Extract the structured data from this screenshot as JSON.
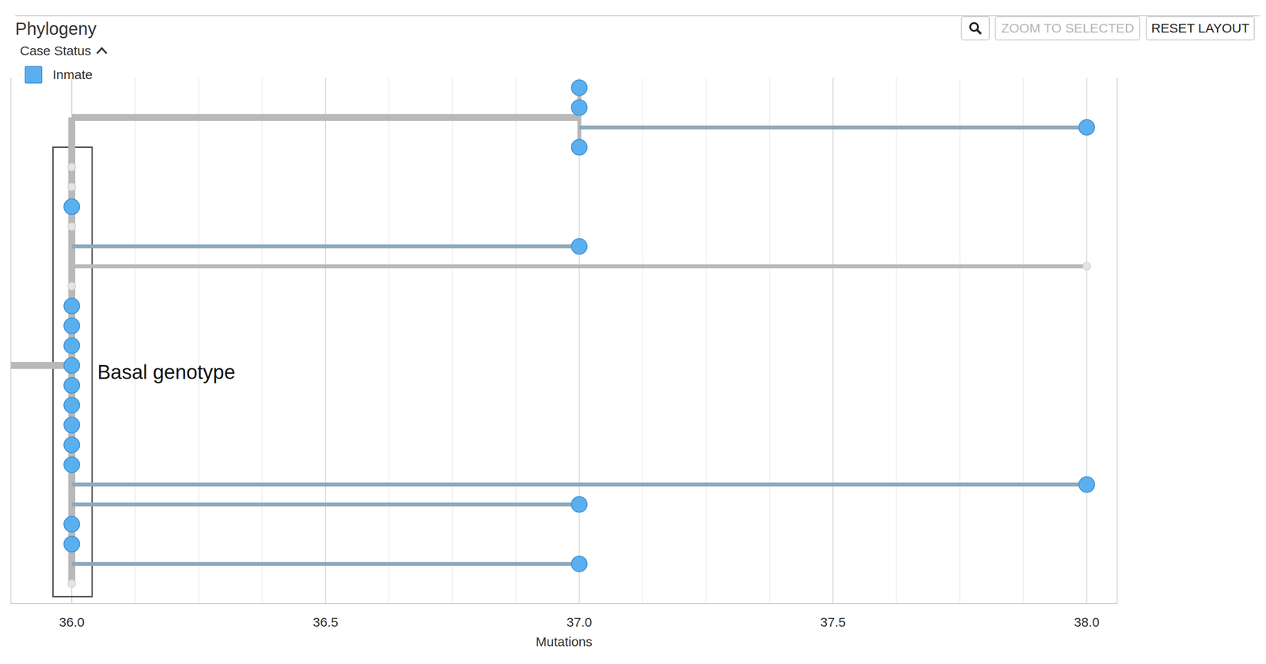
{
  "chart_data": {
    "type": "phylogeny",
    "title": "Phylogeny",
    "x_label": "Mutations",
    "legend_title": "Case Status",
    "buttons": [
      "ZOOM TO SELECTED",
      "RESET LAYOUT"
    ],
    "xlim": [
      35.88,
      38.06
    ],
    "xticks": [
      {
        "value": 36,
        "label": "36.0"
      },
      {
        "value": 36.5,
        "label": "36.5"
      },
      {
        "value": 37,
        "label": "37.0"
      },
      {
        "value": 37.5,
        "label": "37.5"
      },
      {
        "value": 38,
        "label": "38.0"
      }
    ],
    "ylim": [
      -0.5,
      26
    ],
    "grid": true,
    "tick_labels": "x",
    "legend": "top-left",
    "series": [
      {
        "name": "Inmate",
        "color": "#5aafee",
        "marker": "circle",
        "x": [
          37,
          37,
          38,
          37,
          36,
          37,
          36,
          36,
          36,
          36,
          36,
          36,
          36,
          36,
          36,
          38,
          37,
          36,
          36,
          37
        ],
        "y": [
          0,
          1,
          2,
          3,
          6,
          8,
          11,
          12,
          13,
          14,
          15,
          16,
          17,
          18,
          19,
          20,
          21,
          22,
          23,
          24
        ]
      },
      {
        "color": "#e4e4e4",
        "marker": "dot",
        "x": [
          36,
          36,
          36,
          38,
          36,
          36
        ],
        "y": [
          4,
          5,
          7,
          9,
          10,
          25
        ]
      }
    ],
    "edges": [
      {
        "x": [
          35.88,
          36
        ],
        "y": [
          14,
          14
        ],
        "color": "#b8b9b9",
        "line_style": "thick"
      },
      {
        "x": [
          36,
          36
        ],
        "y": [
          1.5,
          25
        ],
        "color": "#b8b9b9",
        "line_style": "thick"
      },
      {
        "x": [
          36,
          37
        ],
        "y": [
          1.5,
          1.5
        ],
        "color": "#b8b9b9",
        "line_style": "thick"
      },
      {
        "x": [
          37,
          37
        ],
        "y": [
          0,
          3
        ],
        "color": "#b8b9b9",
        "line_style": "thin"
      },
      {
        "x": [
          37,
          38
        ],
        "y": [
          2,
          2
        ],
        "color": "#8fa9bd",
        "line_style": "thin"
      },
      {
        "x": [
          36,
          37
        ],
        "y": [
          8,
          8
        ],
        "color": "#8fa9bd",
        "line_style": "thin"
      },
      {
        "x": [
          36,
          38
        ],
        "y": [
          9,
          9
        ],
        "color": "#b8b9b9",
        "line_style": "thin"
      },
      {
        "x": [
          36,
          38
        ],
        "y": [
          20,
          20
        ],
        "color": "#8fa9bd",
        "line_style": "thin"
      },
      {
        "x": [
          36,
          37
        ],
        "y": [
          21,
          21
        ],
        "color": "#8fa9bd",
        "line_style": "thin"
      },
      {
        "x": [
          36,
          37
        ],
        "y": [
          24,
          24
        ],
        "color": "#8fa9bd",
        "line_style": "thin"
      }
    ],
    "annotation": {
      "text": "Basal genotype",
      "x": [
        35.963,
        36.04
      ],
      "y": [
        3,
        25.65
      ]
    }
  }
}
